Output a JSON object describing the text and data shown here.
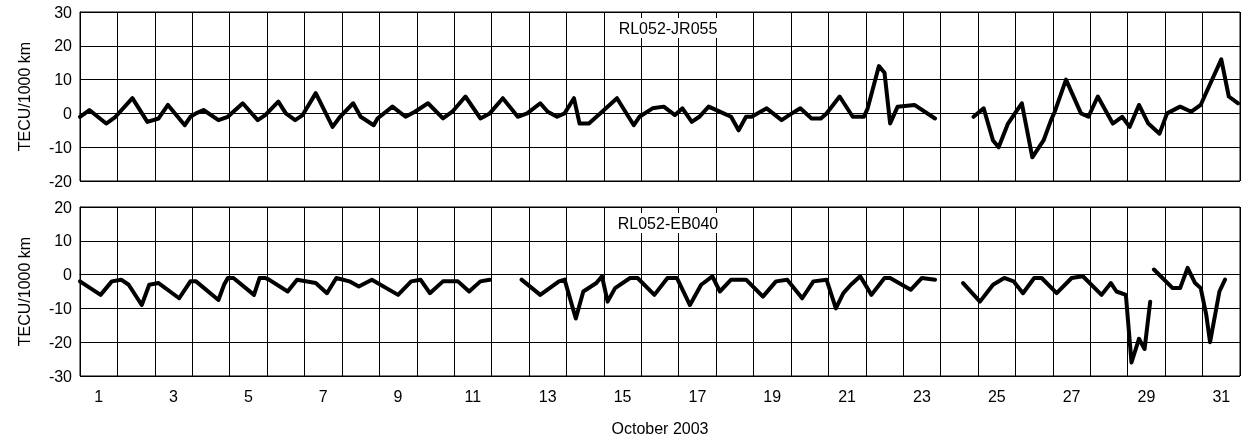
{
  "chart_data": [
    {
      "type": "line",
      "title": "RL052-JR055",
      "ylabel": "TECU/1000 km",
      "xlim": [
        1,
        32
      ],
      "xticks": [
        {
          "value": 1,
          "label": null
        },
        {
          "value": 2,
          "label": null
        },
        {
          "value": 3,
          "label": null
        },
        {
          "value": 4,
          "label": null
        },
        {
          "value": 5,
          "label": null
        },
        {
          "value": 6,
          "label": null
        },
        {
          "value": 7,
          "label": null
        },
        {
          "value": 8,
          "label": null
        },
        {
          "value": 9,
          "label": null
        },
        {
          "value": 10,
          "label": null
        },
        {
          "value": 11,
          "label": null
        },
        {
          "value": 12,
          "label": null
        },
        {
          "value": 13,
          "label": null
        },
        {
          "value": 14,
          "label": null
        },
        {
          "value": 15,
          "label": null
        },
        {
          "value": 16,
          "label": null
        },
        {
          "value": 17,
          "label": null
        },
        {
          "value": 18,
          "label": null
        },
        {
          "value": 19,
          "label": null
        },
        {
          "value": 20,
          "label": null
        },
        {
          "value": 21,
          "label": null
        },
        {
          "value": 22,
          "label": null
        },
        {
          "value": 23,
          "label": null
        },
        {
          "value": 24,
          "label": null
        },
        {
          "value": 25,
          "label": null
        },
        {
          "value": 26,
          "label": null
        },
        {
          "value": 27,
          "label": null
        },
        {
          "value": 28,
          "label": null
        },
        {
          "value": 29,
          "label": null
        },
        {
          "value": 30,
          "label": null
        },
        {
          "value": 31,
          "label": null
        },
        {
          "value": 32,
          "label": null
        }
      ],
      "ylim": [
        -20,
        30
      ],
      "yticks": [
        -20,
        -10,
        0,
        10,
        20,
        30
      ],
      "grid": true,
      "tick_labels": "y",
      "marker": "none",
      "line_style": "solid",
      "series": [
        {
          "color": "#000000",
          "x": [
            1.0,
            1.25,
            1.7,
            1.95,
            2.4,
            2.8,
            3.1,
            3.35,
            3.8,
            3.95,
            4.1,
            4.3,
            4.7,
            4.95,
            5.35,
            5.75,
            5.95,
            6.3,
            6.5,
            6.75,
            6.95,
            7.3,
            7.75,
            7.95,
            8.3,
            8.5,
            8.85,
            8.95,
            9.35,
            9.7,
            9.95,
            10.3,
            10.7,
            10.95,
            11.3,
            11.7,
            11.95,
            12.3,
            12.7,
            12.95,
            13.3,
            13.5,
            13.75,
            13.95,
            14.2,
            14.35,
            14.6,
            14.9,
            15.35,
            15.8,
            15.95,
            16.3,
            16.6,
            16.9,
            17.1,
            17.35,
            17.55,
            17.8,
            18.2,
            18.4,
            18.6,
            18.8,
            18.95,
            19.35,
            19.75,
            19.95,
            20.25,
            20.55,
            20.8,
            20.95,
            21.3,
            21.65,
            21.95,
            22.05,
            22.35,
            22.5,
            22.65,
            22.85,
            23.3,
            23.85,
            24.3,
            24.88,
            25.15,
            25.4,
            25.55,
            25.8,
            26.17,
            26.45,
            26.75,
            26.95,
            27.05,
            27.35,
            27.75,
            27.95,
            28.2,
            28.6,
            28.85,
            29.05,
            29.3,
            29.55,
            29.85,
            30.05,
            30.4,
            30.7,
            30.95,
            31.05,
            31.5,
            31.7,
            31.95
          ],
          "values": [
            -1,
            1,
            -3,
            -1,
            4.5,
            -2.5,
            -1.5,
            2.5,
            -3.5,
            -1,
            0,
            1,
            -2,
            -1,
            3,
            -2,
            -0.5,
            3.5,
            0,
            -2,
            -0.5,
            6,
            -4,
            -1,
            3,
            -1,
            -3.5,
            -1.5,
            2,
            -1,
            0.5,
            3,
            -1.5,
            0.5,
            5,
            -1.5,
            0,
            4.5,
            -1,
            0,
            3,
            0.5,
            -1,
            0,
            4.5,
            -3,
            -3,
            0,
            4.5,
            -3.5,
            -1,
            1.5,
            2,
            -0.5,
            1.5,
            -2.5,
            -1,
            2,
            0,
            -1,
            -5,
            -1,
            -1,
            1.5,
            -2,
            -0.5,
            1.5,
            -1.5,
            -1.5,
            0,
            5,
            -1,
            -1,
            1.5,
            14,
            12,
            -3,
            2,
            2.5,
            -1.5,
            null,
            -1,
            1.5,
            -8,
            -10,
            -3,
            3,
            -13,
            -8,
            -2,
            0.5,
            10,
            0,
            -1,
            5,
            -3,
            -1,
            -4,
            2.5,
            -3,
            -6,
            0,
            2,
            0.5,
            2.5,
            5,
            16,
            5,
            3
          ]
        }
      ]
    },
    {
      "type": "line",
      "title": "RL052-EB040",
      "ylabel": "TECU/1000 km",
      "xlabel": "October 2003",
      "xlim": [
        1,
        32
      ],
      "xticks": [
        {
          "value": 1,
          "label": null
        },
        {
          "value": 1.5,
          "label": "1"
        },
        {
          "value": 2,
          "label": null
        },
        {
          "value": 3,
          "label": null
        },
        {
          "value": 3.5,
          "label": "3"
        },
        {
          "value": 4,
          "label": null
        },
        {
          "value": 5,
          "label": null
        },
        {
          "value": 5.5,
          "label": "5"
        },
        {
          "value": 6,
          "label": null
        },
        {
          "value": 7,
          "label": null
        },
        {
          "value": 7.5,
          "label": "7"
        },
        {
          "value": 8,
          "label": null
        },
        {
          "value": 9,
          "label": null
        },
        {
          "value": 9.5,
          "label": "9"
        },
        {
          "value": 10,
          "label": null
        },
        {
          "value": 11,
          "label": null
        },
        {
          "value": 11.5,
          "label": "11"
        },
        {
          "value": 12,
          "label": null
        },
        {
          "value": 13,
          "label": null
        },
        {
          "value": 13.5,
          "label": "13"
        },
        {
          "value": 14,
          "label": null
        },
        {
          "value": 15,
          "label": null
        },
        {
          "value": 15.5,
          "label": "15"
        },
        {
          "value": 16,
          "label": null
        },
        {
          "value": 17,
          "label": null
        },
        {
          "value": 17.5,
          "label": "17"
        },
        {
          "value": 18,
          "label": null
        },
        {
          "value": 19,
          "label": null
        },
        {
          "value": 19.5,
          "label": "19"
        },
        {
          "value": 20,
          "label": null
        },
        {
          "value": 21,
          "label": null
        },
        {
          "value": 21.5,
          "label": "21"
        },
        {
          "value": 22,
          "label": null
        },
        {
          "value": 23,
          "label": null
        },
        {
          "value": 23.5,
          "label": "23"
        },
        {
          "value": 24,
          "label": null
        },
        {
          "value": 25,
          "label": null
        },
        {
          "value": 25.5,
          "label": "25"
        },
        {
          "value": 26,
          "label": null
        },
        {
          "value": 27,
          "label": null
        },
        {
          "value": 27.5,
          "label": "27"
        },
        {
          "value": 28,
          "label": null
        },
        {
          "value": 29,
          "label": null
        },
        {
          "value": 29.5,
          "label": "29"
        },
        {
          "value": 30,
          "label": null
        },
        {
          "value": 31,
          "label": null
        },
        {
          "value": 31.5,
          "label": "31"
        },
        {
          "value": 32,
          "label": null
        }
      ],
      "ylim": [
        -30,
        20
      ],
      "yticks": [
        -30,
        -20,
        -10,
        0,
        10,
        20
      ],
      "grid": true,
      "marker": "none",
      "line_style": "solid",
      "series": [
        {
          "color": "#000000",
          "x": [
            1.0,
            1.55,
            1.85,
            2.1,
            2.3,
            2.65,
            2.85,
            3.1,
            3.65,
            3.95,
            4.1,
            4.7,
            4.85,
            4.95,
            5.1,
            5.65,
            5.8,
            5.95,
            6.05,
            6.55,
            6.8,
            7.3,
            7.6,
            7.85,
            8.2,
            8.45,
            8.8,
            9.5,
            9.85,
            10.1,
            10.35,
            10.7,
            11.1,
            11.4,
            11.7,
            11.95,
            12.4,
            12.8,
            13.3,
            13.8,
            13.95,
            14.25,
            14.45,
            14.8,
            14.95,
            15.1,
            15.3,
            15.7,
            15.9,
            16.35,
            16.7,
            16.95,
            17.3,
            17.6,
            17.9,
            18.1,
            18.4,
            18.8,
            19.25,
            19.6,
            19.9,
            20.3,
            20.6,
            20.95,
            21.2,
            21.4,
            21.6,
            21.85,
            22.15,
            22.5,
            22.65,
            23.2,
            23.5,
            23.85,
            24.2,
            24.6,
            25.05,
            25.4,
            25.7,
            25.95,
            26.2,
            26.5,
            26.7,
            27.1,
            27.5,
            27.8,
            28.3,
            28.55,
            28.7,
            28.95,
            29.1,
            29.3,
            29.45,
            29.6,
            29.65,
            29.7,
            30.2,
            30.4,
            30.6,
            30.8,
            30.95,
            31.1,
            31.2,
            31.45,
            31.6
          ],
          "values": [
            -2,
            -6,
            -2,
            -1.5,
            -3,
            -9,
            -3,
            -2.5,
            -7,
            -2,
            -2,
            -7.5,
            -3,
            -1,
            -1,
            -6,
            -1,
            -1,
            -1.5,
            -5,
            -1.5,
            -2.5,
            -5.5,
            -1,
            -2,
            -3.5,
            -1.5,
            -6,
            -2,
            -1.5,
            -5.5,
            -2,
            -2,
            -5,
            -2,
            -1.5,
            null,
            -1.5,
            -6,
            -2,
            -1.5,
            -13,
            -5,
            -2.5,
            -0.5,
            -8,
            -4,
            -1,
            -1,
            -6,
            -1,
            -1,
            -9,
            -3,
            -0.5,
            -5,
            -1.5,
            -1.5,
            -6.5,
            -2,
            -1.5,
            -7,
            -2,
            -1.5,
            -10,
            -5.5,
            -3,
            -0.5,
            -6,
            -1,
            -1,
            -4.5,
            -1,
            -1.5,
            null,
            -2.5,
            -8,
            -3,
            -1,
            -2,
            -5.5,
            -1,
            -1,
            -5.5,
            -1,
            -0.5,
            -6,
            -2.5,
            -5,
            -6,
            -26,
            -19,
            -22,
            -8,
            null,
            1.5,
            -4,
            -4,
            2,
            -2.5,
            -4,
            -12,
            -20,
            -5,
            -1.5
          ]
        }
      ]
    }
  ]
}
